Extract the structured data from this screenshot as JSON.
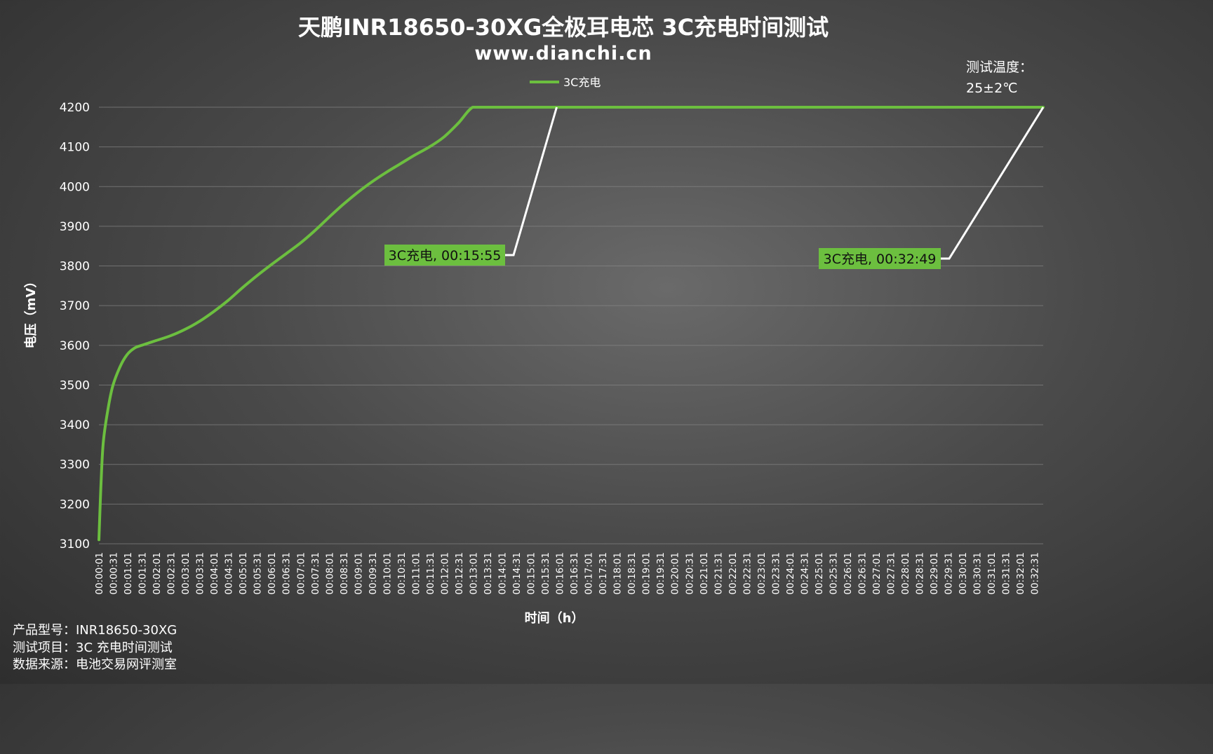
{
  "chart_data": {
    "type": "line",
    "title": "天鹏INR18650-30XG全极耳电芯 3C充电时间测试",
    "subtitle": "www.dianchi.cn",
    "xlabel": "时间（h）",
    "ylabel": "电压（mV）",
    "ylim": [
      3100,
      4200
    ],
    "yticks": [
      "4200",
      "4100",
      "4000",
      "3900",
      "3800",
      "3700",
      "3600",
      "3500",
      "3400",
      "3300",
      "3200",
      "3100"
    ],
    "xticks": [
      "00:00:01",
      "00:00:31",
      "00:01:01",
      "00:01:31",
      "00:02:01",
      "00:02:31",
      "00:03:01",
      "00:03:31",
      "00:04:01",
      "00:04:31",
      "00:05:01",
      "00:05:31",
      "00:06:01",
      "00:06:31",
      "00:07:01",
      "00:07:31",
      "00:08:01",
      "00:08:31",
      "00:09:01",
      "00:09:31",
      "00:10:01",
      "00:10:31",
      "00:11:01",
      "00:11:31",
      "00:12:01",
      "00:12:31",
      "00:13:01",
      "00:13:31",
      "00:14:01",
      "00:14:31",
      "00:15:01",
      "00:15:31",
      "00:16:01",
      "00:16:31",
      "00:17:01",
      "00:17:31",
      "00:18:01",
      "00:18:31",
      "00:19:01",
      "00:19:31",
      "00:20:01",
      "00:20:31",
      "00:21:01",
      "00:21:31",
      "00:22:01",
      "00:22:31",
      "00:23:01",
      "00:23:31",
      "00:24:01",
      "00:24:31",
      "00:25:01",
      "00:25:31",
      "00:26:01",
      "00:26:31",
      "00:27:01",
      "00:27:31",
      "00:28:01",
      "00:28:31",
      "00:29:01",
      "00:29:31",
      "00:30:01",
      "00:30:31",
      "00:31:01",
      "00:31:31",
      "00:32:01",
      "00:32:31"
    ],
    "xrange_seconds": [
      1,
      1969
    ],
    "legend_position": "top-center",
    "grid": true,
    "series": [
      {
        "name": "3C充电",
        "color": "#6cbf3f",
        "x_seconds": [
          1,
          5,
          10,
          20,
          30,
          45,
          60,
          75,
          90,
          105,
          120,
          150,
          180,
          210,
          240,
          270,
          300,
          330,
          360,
          390,
          420,
          450,
          480,
          510,
          540,
          570,
          600,
          630,
          660,
          690,
          720,
          750,
          780,
          810,
          840,
          870,
          900,
          930,
          955,
          1969
        ],
        "values": [
          3110,
          3240,
          3355,
          3440,
          3498,
          3546,
          3577,
          3593,
          3600,
          3606,
          3612,
          3624,
          3640,
          3660,
          3685,
          3713,
          3745,
          3775,
          3803,
          3830,
          3857,
          3888,
          3922,
          3955,
          3985,
          4012,
          4036,
          4058,
          4080,
          4100,
          4125,
          4160,
          4200,
          4200,
          4200,
          4200,
          4200,
          4200,
          4200,
          4200
        ]
      }
    ],
    "annotations": [
      {
        "text": "3C充电, 00:15:55",
        "x_seconds": 955,
        "value": 4200
      },
      {
        "text": "3C充电, 00:32:49",
        "x_seconds": 1969,
        "value": 4200
      }
    ]
  },
  "test_condition": {
    "line1": "测试温度：",
    "line2": "25±2℃"
  },
  "footer": {
    "line1": "产品型号：INR18650-30XG",
    "line2": "测试项目：3C 充电时间测试",
    "line3": "数据来源：电池交易网评测室"
  },
  "colors": {
    "series": "#6cbf3f",
    "label_bg": "#6cbf3f",
    "grid": "#8a8a8a",
    "leader": "#ffffff"
  }
}
